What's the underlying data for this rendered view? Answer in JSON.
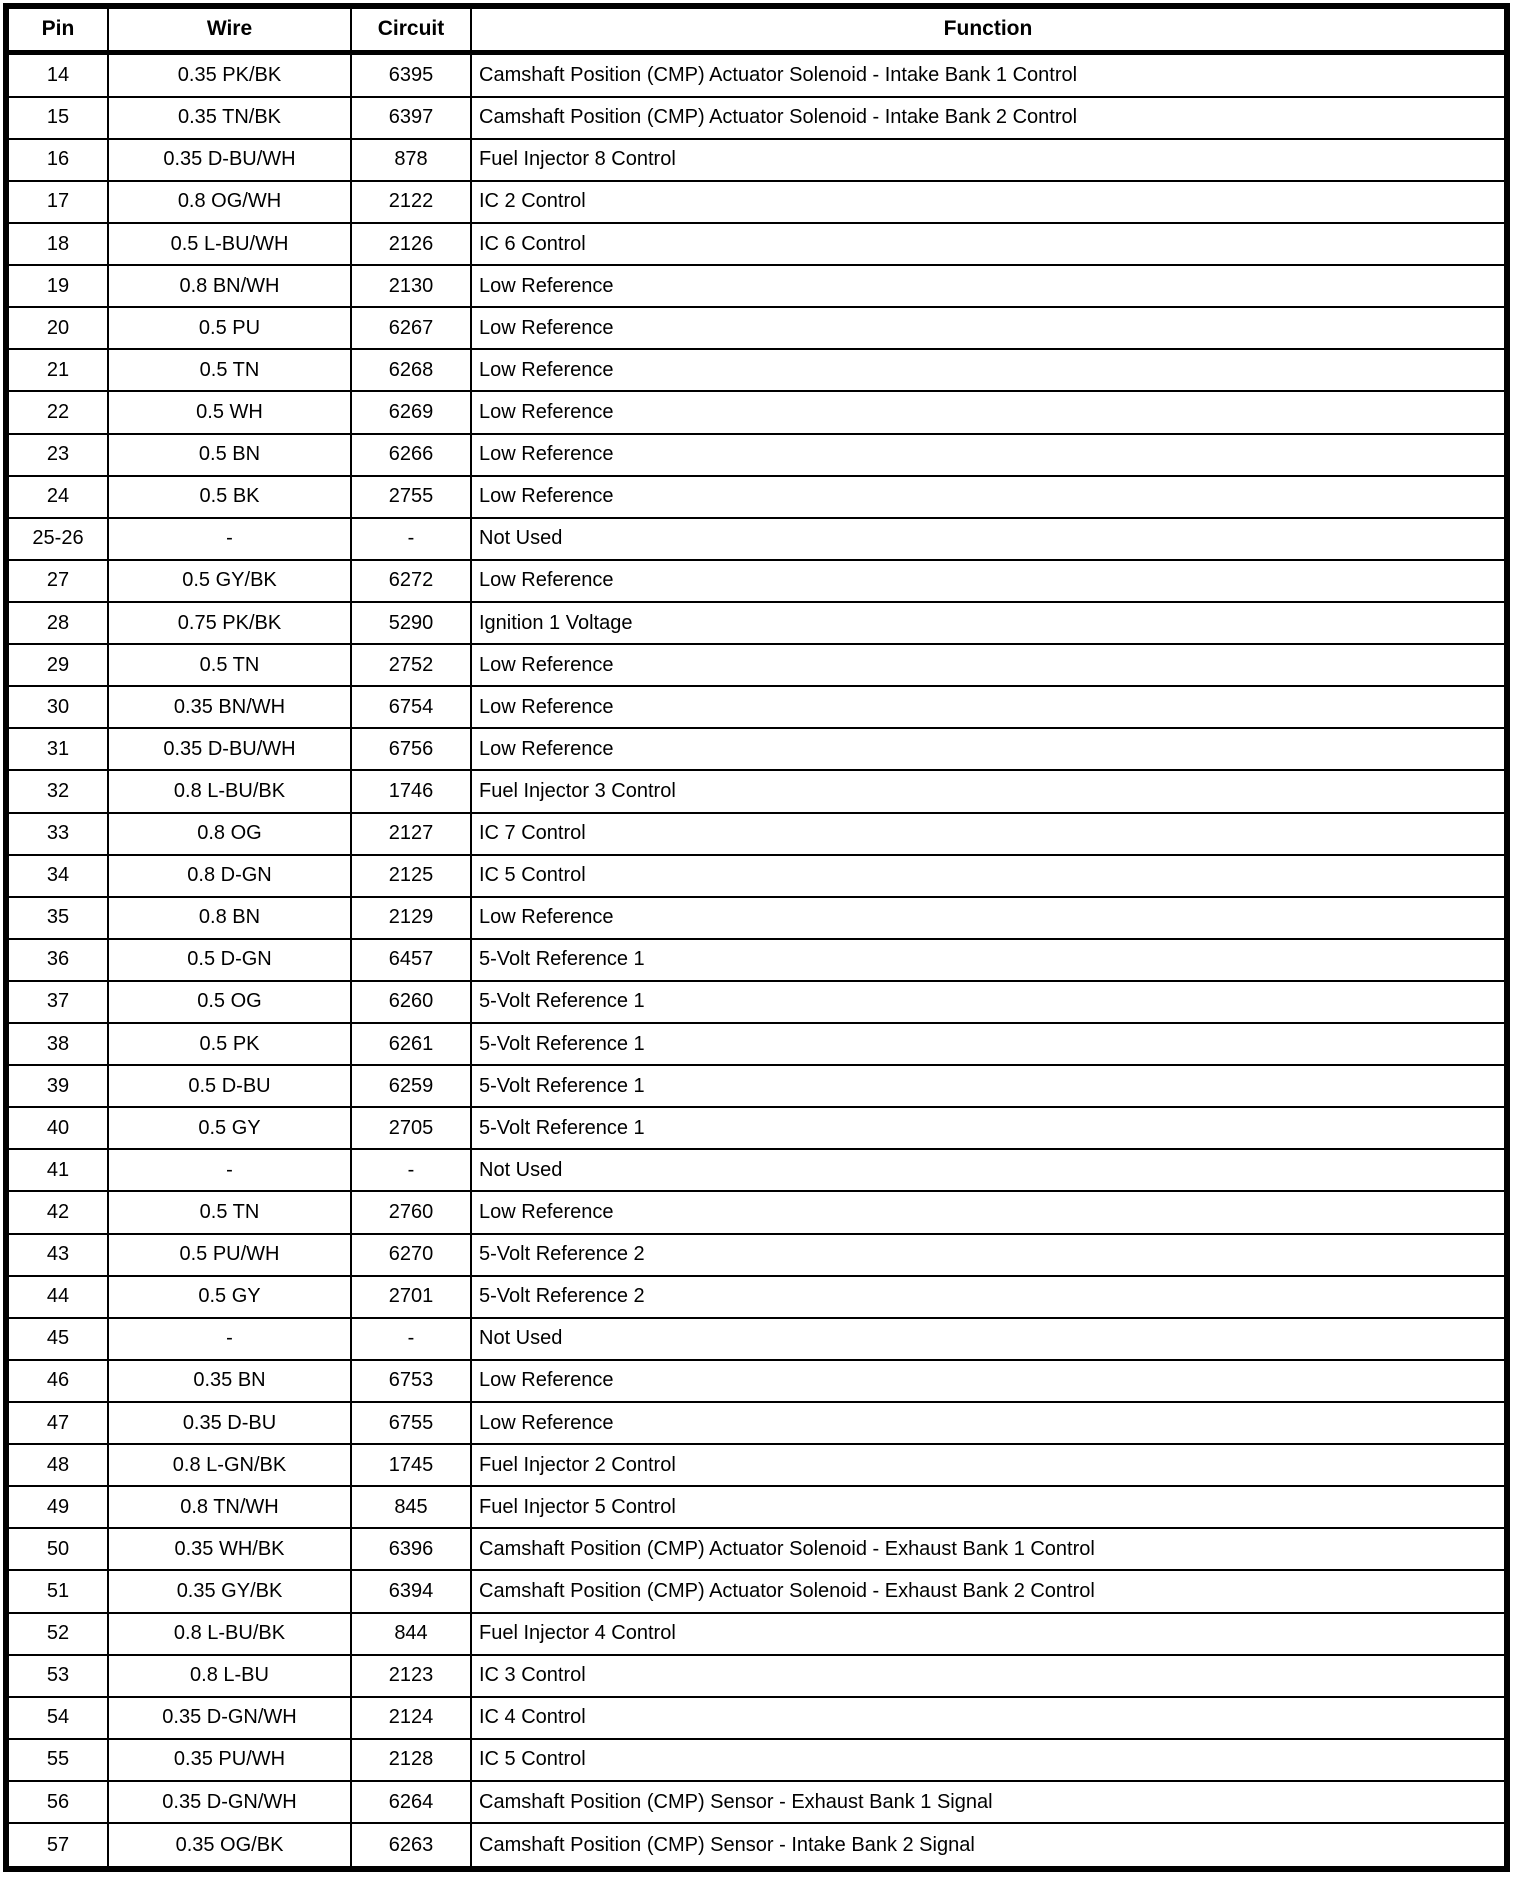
{
  "page": {
    "background_color": "#ffffff",
    "line_color": "#000000",
    "text_color": "#000000"
  },
  "table": {
    "headers": [
      "Pin",
      "Wire",
      "Circuit",
      "Function"
    ],
    "rows": [
      [
        "14",
        "0.35 PK/BK",
        "6395",
        "Camshaft Position (CMP) Actuator Solenoid - Intake Bank 1 Control"
      ],
      [
        "15",
        "0.35 TN/BK",
        "6397",
        "Camshaft Position (CMP) Actuator Solenoid - Intake Bank 2 Control"
      ],
      [
        "16",
        "0.35 D-BU/WH",
        "878",
        "Fuel Injector 8 Control"
      ],
      [
        "17",
        "0.8 OG/WH",
        "2122",
        "IC 2 Control"
      ],
      [
        "18",
        "0.5 L-BU/WH",
        "2126",
        "IC 6 Control"
      ],
      [
        "19",
        "0.8 BN/WH",
        "2130",
        "Low Reference"
      ],
      [
        "20",
        "0.5 PU",
        "6267",
        "Low Reference"
      ],
      [
        "21",
        "0.5 TN",
        "6268",
        "Low Reference"
      ],
      [
        "22",
        "0.5 WH",
        "6269",
        "Low Reference"
      ],
      [
        "23",
        "0.5 BN",
        "6266",
        "Low Reference"
      ],
      [
        "24",
        "0.5 BK",
        "2755",
        "Low Reference"
      ],
      [
        "25-26",
        "-",
        "-",
        "Not Used"
      ],
      [
        "27",
        "0.5 GY/BK",
        "6272",
        "Low Reference"
      ],
      [
        "28",
        "0.75 PK/BK",
        "5290",
        "Ignition 1 Voltage"
      ],
      [
        "29",
        "0.5 TN",
        "2752",
        "Low Reference"
      ],
      [
        "30",
        "0.35 BN/WH",
        "6754",
        "Low Reference"
      ],
      [
        "31",
        "0.35 D-BU/WH",
        "6756",
        "Low Reference"
      ],
      [
        "32",
        "0.8 L-BU/BK",
        "1746",
        "Fuel Injector 3 Control"
      ],
      [
        "33",
        "0.8 OG",
        "2127",
        "IC 7 Control"
      ],
      [
        "34",
        "0.8 D-GN",
        "2125",
        "IC 5 Control"
      ],
      [
        "35",
        "0.8 BN",
        "2129",
        "Low Reference"
      ],
      [
        "36",
        "0.5 D-GN",
        "6457",
        "5-Volt Reference 1"
      ],
      [
        "37",
        "0.5 OG",
        "6260",
        "5-Volt Reference 1"
      ],
      [
        "38",
        "0.5 PK",
        "6261",
        "5-Volt Reference 1"
      ],
      [
        "39",
        "0.5 D-BU",
        "6259",
        "5-Volt Reference 1"
      ],
      [
        "40",
        "0.5 GY",
        "2705",
        "5-Volt Reference 1"
      ],
      [
        "41",
        "-",
        "-",
        "Not Used"
      ],
      [
        "42",
        "0.5 TN",
        "2760",
        "Low Reference"
      ],
      [
        "43",
        "0.5 PU/WH",
        "6270",
        "5-Volt Reference 2"
      ],
      [
        "44",
        "0.5 GY",
        "2701",
        "5-Volt Reference 2"
      ],
      [
        "45",
        "-",
        "-",
        "Not Used"
      ],
      [
        "46",
        "0.35 BN",
        "6753",
        "Low Reference"
      ],
      [
        "47",
        "0.35 D-BU",
        "6755",
        "Low Reference"
      ],
      [
        "48",
        "0.8 L-GN/BK",
        "1745",
        "Fuel Injector 2 Control"
      ],
      [
        "49",
        "0.8 TN/WH",
        "845",
        "Fuel Injector 5 Control"
      ],
      [
        "50",
        "0.35 WH/BK",
        "6396",
        "Camshaft Position (CMP) Actuator Solenoid - Exhaust Bank 1 Control"
      ],
      [
        "51",
        "0.35 GY/BK",
        "6394",
        "Camshaft Position (CMP) Actuator Solenoid - Exhaust Bank 2 Control"
      ],
      [
        "52",
        "0.8 L-BU/BK",
        "844",
        "Fuel Injector 4 Control"
      ],
      [
        "53",
        "0.8 L-BU",
        "2123",
        "IC 3 Control"
      ],
      [
        "54",
        "0.35 D-GN/WH",
        "2124",
        "IC 4 Control"
      ],
      [
        "55",
        "0.35 PU/WH",
        "2128",
        "IC 5 Control"
      ],
      [
        "56",
        "0.35 D-GN/WH",
        "6264",
        "Camshaft Position (CMP) Sensor - Exhaust Bank 1 Signal"
      ],
      [
        "57",
        "0.35 OG/BK",
        "6263",
        "Camshaft Position (CMP) Sensor - Intake Bank 2 Signal"
      ]
    ]
  }
}
